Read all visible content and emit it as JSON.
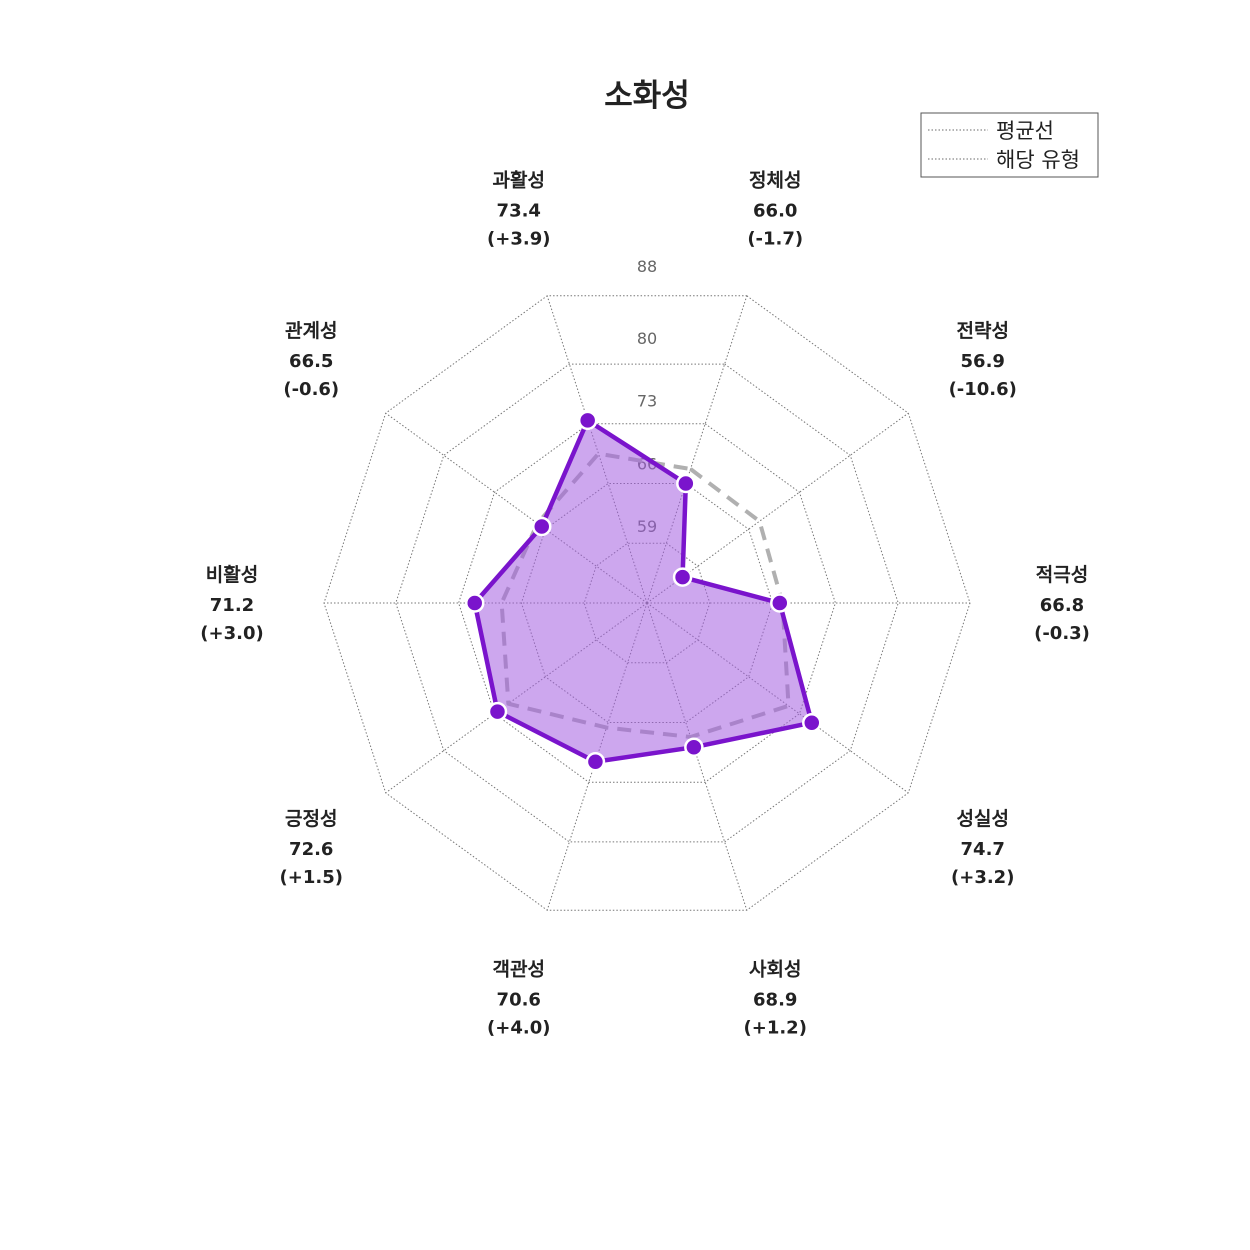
{
  "chart_data": {
    "type": "radar",
    "title": "소화성",
    "legend": {
      "placement": "top-right",
      "entries": [
        "평균선",
        "해당 유형"
      ]
    },
    "radial_ticks": [
      "59",
      "66",
      "73",
      "80",
      "88"
    ],
    "radial_range": [
      52,
      88
    ],
    "axes": [
      {
        "name": "정체성",
        "value": "66.0",
        "diff": "(-1.7)"
      },
      {
        "name": "전략성",
        "value": "56.9",
        "diff": "(-10.6)"
      },
      {
        "name": "적극성",
        "value": "66.8",
        "diff": "(-0.3)"
      },
      {
        "name": "성실성",
        "value": "74.7",
        "diff": "(+3.2)"
      },
      {
        "name": "사회성",
        "value": "68.9",
        "diff": "(+1.2)"
      },
      {
        "name": "객관성",
        "value": "70.6",
        "diff": "(+4.0)"
      },
      {
        "name": "긍정성",
        "value": "72.6",
        "diff": "(+1.5)"
      },
      {
        "name": "비활성",
        "value": "71.2",
        "diff": "(+3.0)"
      },
      {
        "name": "관계성",
        "value": "66.5",
        "diff": "(-0.6)"
      },
      {
        "name": "과활성",
        "value": "73.4",
        "diff": "(+3.9)"
      }
    ],
    "series": [
      {
        "name": "평균선",
        "values": [
          67.7,
          67.5,
          67.1,
          71.5,
          67.7,
          66.6,
          71.1,
          68.2,
          67.1,
          69.5
        ]
      },
      {
        "name": "해당 유형",
        "values": [
          66.0,
          56.9,
          66.8,
          74.7,
          68.9,
          70.6,
          72.6,
          71.2,
          66.5,
          73.4
        ]
      }
    ],
    "colors": {
      "type_line": "#7a14cc",
      "type_fill": "#a45ee0",
      "average_line": "#b0b0b0",
      "grid": "#777777"
    }
  }
}
